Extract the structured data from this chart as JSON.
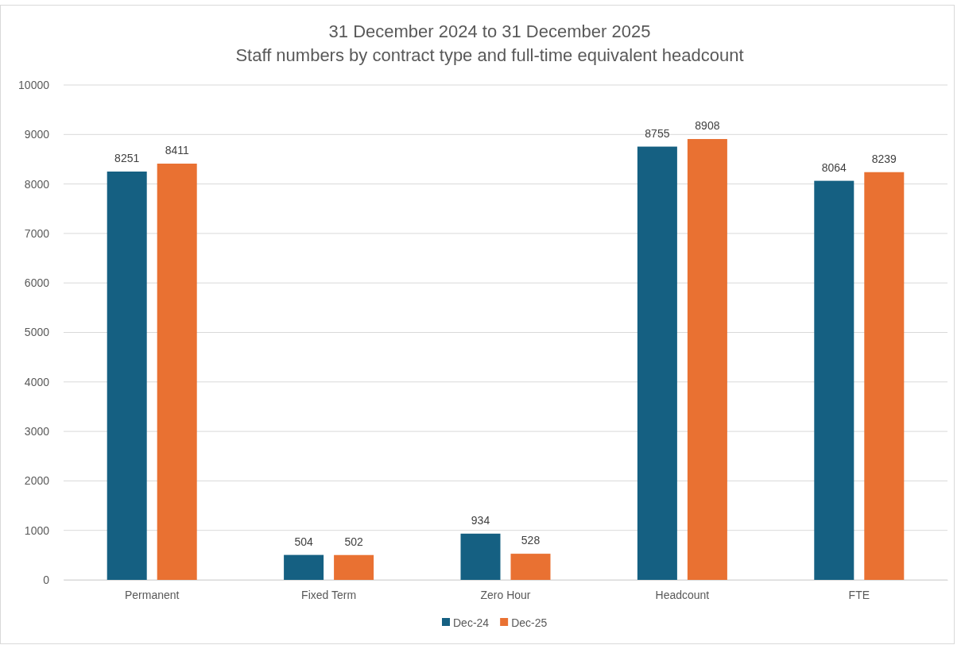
{
  "chart_data": {
    "type": "bar",
    "title": "31 December 2024 to 31 December 2025",
    "subtitle": "Staff numbers by contract type and full-time equivalent headcount",
    "categories": [
      "Permanent",
      "Fixed Term",
      "Zero Hour",
      "Headcount",
      "FTE"
    ],
    "series": [
      {
        "name": "Dec-24",
        "color": "#156082",
        "values": [
          8251,
          504,
          934,
          8755,
          8064
        ]
      },
      {
        "name": "Dec-25",
        "color": "#e97132",
        "values": [
          8411,
          502,
          528,
          8908,
          8239
        ]
      }
    ],
    "ylim": [
      0,
      10000
    ],
    "yticks": [
      0,
      1000,
      2000,
      3000,
      4000,
      5000,
      6000,
      7000,
      8000,
      9000,
      10000
    ],
    "grid": "y",
    "legend": "bottom",
    "data_labels": true
  }
}
